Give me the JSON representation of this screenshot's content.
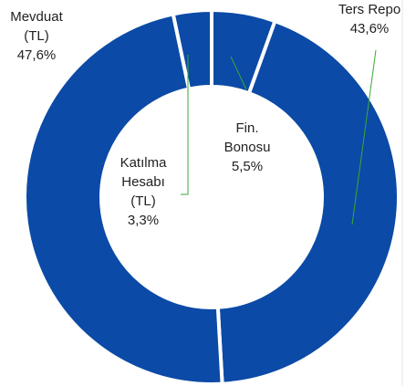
{
  "chart_data": {
    "type": "donut",
    "categories": [
      "Fin. Bonosu",
      "Ters Repo",
      "Mevduat (TL)",
      "Katılma Hesabı (TL)"
    ],
    "values": [
      5.5,
      43.6,
      47.6,
      3.3
    ],
    "value_labels": [
      "5,5%",
      "43,6%",
      "47,6%",
      "3,3%"
    ],
    "color": "#0b4aa6"
  }
}
